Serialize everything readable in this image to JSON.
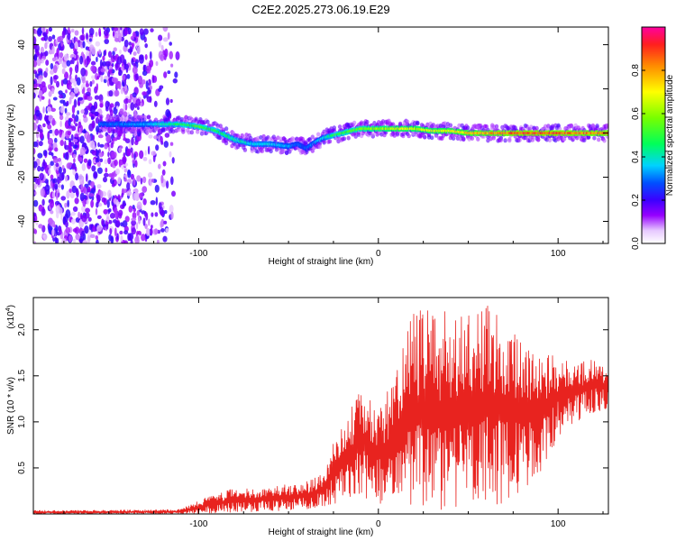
{
  "figure_title": "C2E2.2025.273.06.19.E29",
  "chart_data": [
    {
      "type": "heatmap",
      "xlabel": "Height of straight line (km)",
      "ylabel": "Frequency (Hz)",
      "xlim": [
        -192,
        128
      ],
      "ylim": [
        -50,
        48
      ],
      "x_ticks": [
        -100,
        0,
        100
      ],
      "x_tick_labels": [
        "-100",
        "0",
        "100"
      ],
      "y_ticks": [
        -40,
        -20,
        0,
        20,
        40
      ],
      "y_tick_labels": [
        "-40",
        "-20",
        "0",
        "20",
        "40"
      ],
      "colorbar": {
        "label": "Normalized spectral amplitude",
        "range": [
          0,
          1
        ],
        "ticks": [
          0.0,
          0.2,
          0.4,
          0.6,
          0.8
        ],
        "tick_labels": [
          "0.0",
          "0.2",
          "0.4",
          "0.6",
          "0.8"
        ]
      },
      "ridge": {
        "x": [
          -155,
          -130,
          -120,
          -110,
          -100,
          -90,
          -80,
          -70,
          -60,
          -50,
          -45,
          -40,
          -35,
          -30,
          -25,
          -20,
          -10,
          0,
          10,
          20,
          30,
          40,
          50,
          60,
          70,
          80,
          90,
          100,
          110,
          120,
          128
        ],
        "freq": [
          4,
          4,
          4,
          4,
          3,
          1,
          -3,
          -5,
          -5,
          -6,
          -5,
          -7,
          -4,
          -2,
          -1,
          0,
          2,
          2,
          2,
          2,
          1,
          1,
          0,
          0,
          0,
          0,
          0,
          0,
          0,
          0,
          0
        ],
        "amplitude": [
          0.3,
          0.35,
          0.45,
          0.5,
          0.55,
          0.5,
          0.45,
          0.4,
          0.4,
          0.35,
          0.3,
          0.3,
          0.35,
          0.4,
          0.5,
          0.55,
          0.6,
          0.65,
          0.7,
          0.7,
          0.7,
          0.75,
          0.8,
          0.85,
          0.9,
          0.95,
          0.95,
          0.95,
          0.9,
          0.9,
          0.9
        ]
      },
      "noise_region_x": [
        -192,
        -110
      ]
    },
    {
      "type": "line",
      "xlabel": "Height of straight line (km)",
      "ylabel": "SNR (10 * v/v)",
      "y_scale_label": "(x10",
      "y_scale_exponent": "4",
      "y_scale_close": ")",
      "xlim": [
        -192,
        128
      ],
      "ylim": [
        0,
        2.35
      ],
      "x_ticks": [
        -100,
        0,
        100
      ],
      "x_tick_labels": [
        "-100",
        "0",
        "100"
      ],
      "y_ticks": [
        0.5,
        1.0,
        1.5,
        2.0
      ],
      "y_tick_labels": [
        "0.5",
        "1.0",
        "1.5",
        "2.0"
      ],
      "color": "#e8231f",
      "series": [
        {
          "name": "SNR",
          "envelope_x": [
            -192,
            -150,
            -110,
            -100,
            -90,
            -80,
            -70,
            -60,
            -50,
            -40,
            -30,
            -25,
            -20,
            -10,
            0,
            10,
            20,
            30,
            40,
            50,
            60,
            70,
            80,
            90,
            100,
            110,
            120,
            128
          ],
          "envelope_max": [
            0.04,
            0.04,
            0.05,
            0.15,
            0.22,
            0.28,
            0.28,
            0.3,
            0.32,
            0.35,
            0.45,
            0.85,
            0.95,
            1.35,
            1.2,
            1.55,
            2.25,
            2.2,
            2.2,
            2.15,
            2.35,
            2.15,
            1.9,
            1.7,
            1.75,
            1.65,
            1.7,
            1.6
          ],
          "envelope_min": [
            0.0,
            0.0,
            0.0,
            0.0,
            0.01,
            0.02,
            0.02,
            0.03,
            0.04,
            0.05,
            0.08,
            0.1,
            0.15,
            0.2,
            0.1,
            0.05,
            0.05,
            0.0,
            0.05,
            0.05,
            0.05,
            0.1,
            0.25,
            0.45,
            0.8,
            1.0,
            1.1,
            1.15
          ]
        }
      ]
    }
  ]
}
